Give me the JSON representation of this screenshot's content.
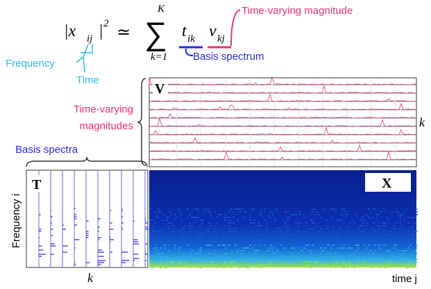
{
  "formula": {
    "lhs": "|x",
    "lhs_sub": "ij",
    "lhs_close": "|",
    "lhs_sup": "2",
    "relation": "≃",
    "sum": "∑",
    "sum_upper": "K",
    "sum_lower": "k=1",
    "t": "t",
    "t_sub": "ik",
    "v": "v",
    "v_sub": "kj"
  },
  "annotations": {
    "frequency": "Frequency",
    "time": "Time",
    "basis_spectrum": "Basis spectrum",
    "time_varying_magnitude": "Time-varying magnitude",
    "time_varying_magnitudes": [
      "Time-varying",
      "magnitudes"
    ],
    "basis_spectra": "Basis spectra"
  },
  "panels": {
    "v_label": "V",
    "t_label": "T",
    "x_label": "X",
    "v_axis": "k",
    "t_x_axis": "k",
    "t_y_axis": "Frequency i",
    "x_x_axis": "time j"
  }
}
